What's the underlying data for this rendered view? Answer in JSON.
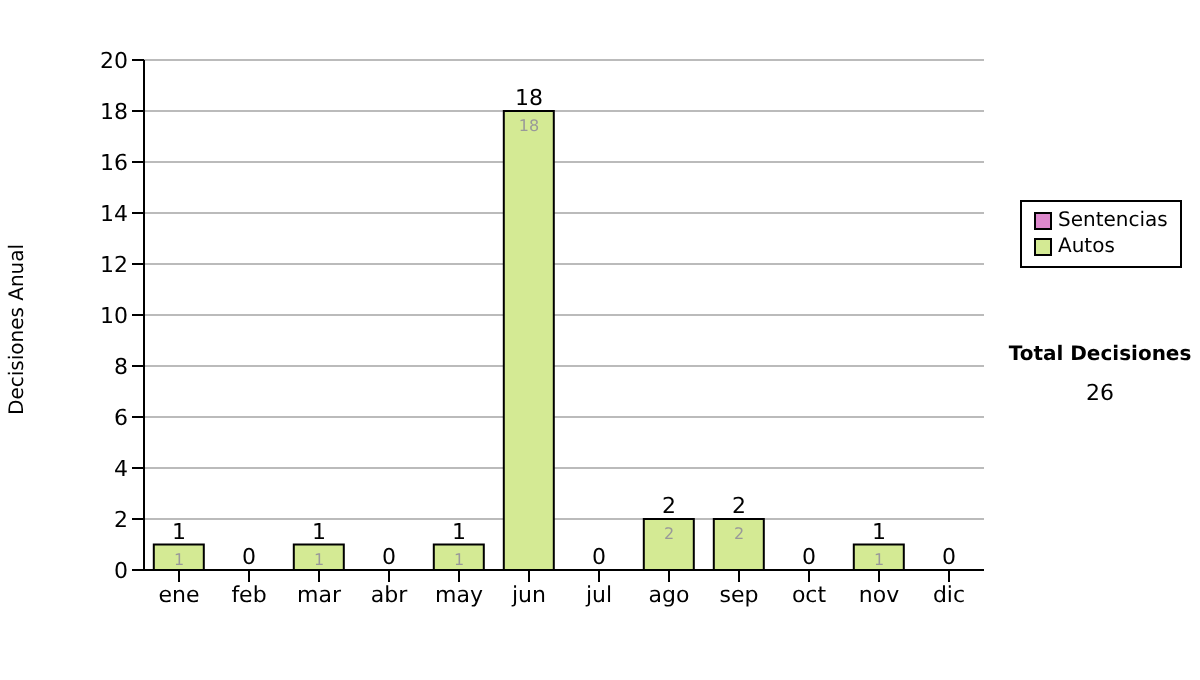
{
  "chart_data": {
    "type": "bar",
    "ylabel": "Decisiones Anual",
    "categories": [
      "ene",
      "feb",
      "mar",
      "abr",
      "may",
      "jun",
      "jul",
      "ago",
      "sep",
      "oct",
      "nov",
      "dic"
    ],
    "series": [
      {
        "name": "Autos",
        "color": "#d4ea94",
        "values": [
          1,
          0,
          1,
          0,
          1,
          18,
          0,
          2,
          2,
          0,
          1,
          0
        ],
        "value_labels": [
          "1",
          null,
          "1",
          null,
          "1",
          "18",
          null,
          "2",
          "2",
          null,
          "1",
          null
        ]
      },
      {
        "name": "Sentencias",
        "color": "#dd88cc",
        "values": [
          0,
          0,
          0,
          0,
          0,
          0,
          0,
          0,
          0,
          0,
          0,
          0
        ]
      }
    ],
    "stacked": true,
    "totals": [
      "1",
      "0",
      "1",
      "0",
      "1",
      "18",
      "0",
      "2",
      "2",
      "0",
      "1",
      "0"
    ],
    "ylim": [
      0,
      20
    ],
    "yticks": [
      0,
      2,
      4,
      6,
      8,
      10,
      12,
      14,
      16,
      18,
      20
    ],
    "grid": "y",
    "legend": "right",
    "annotations": [
      "Total Decisiones",
      "26"
    ]
  }
}
